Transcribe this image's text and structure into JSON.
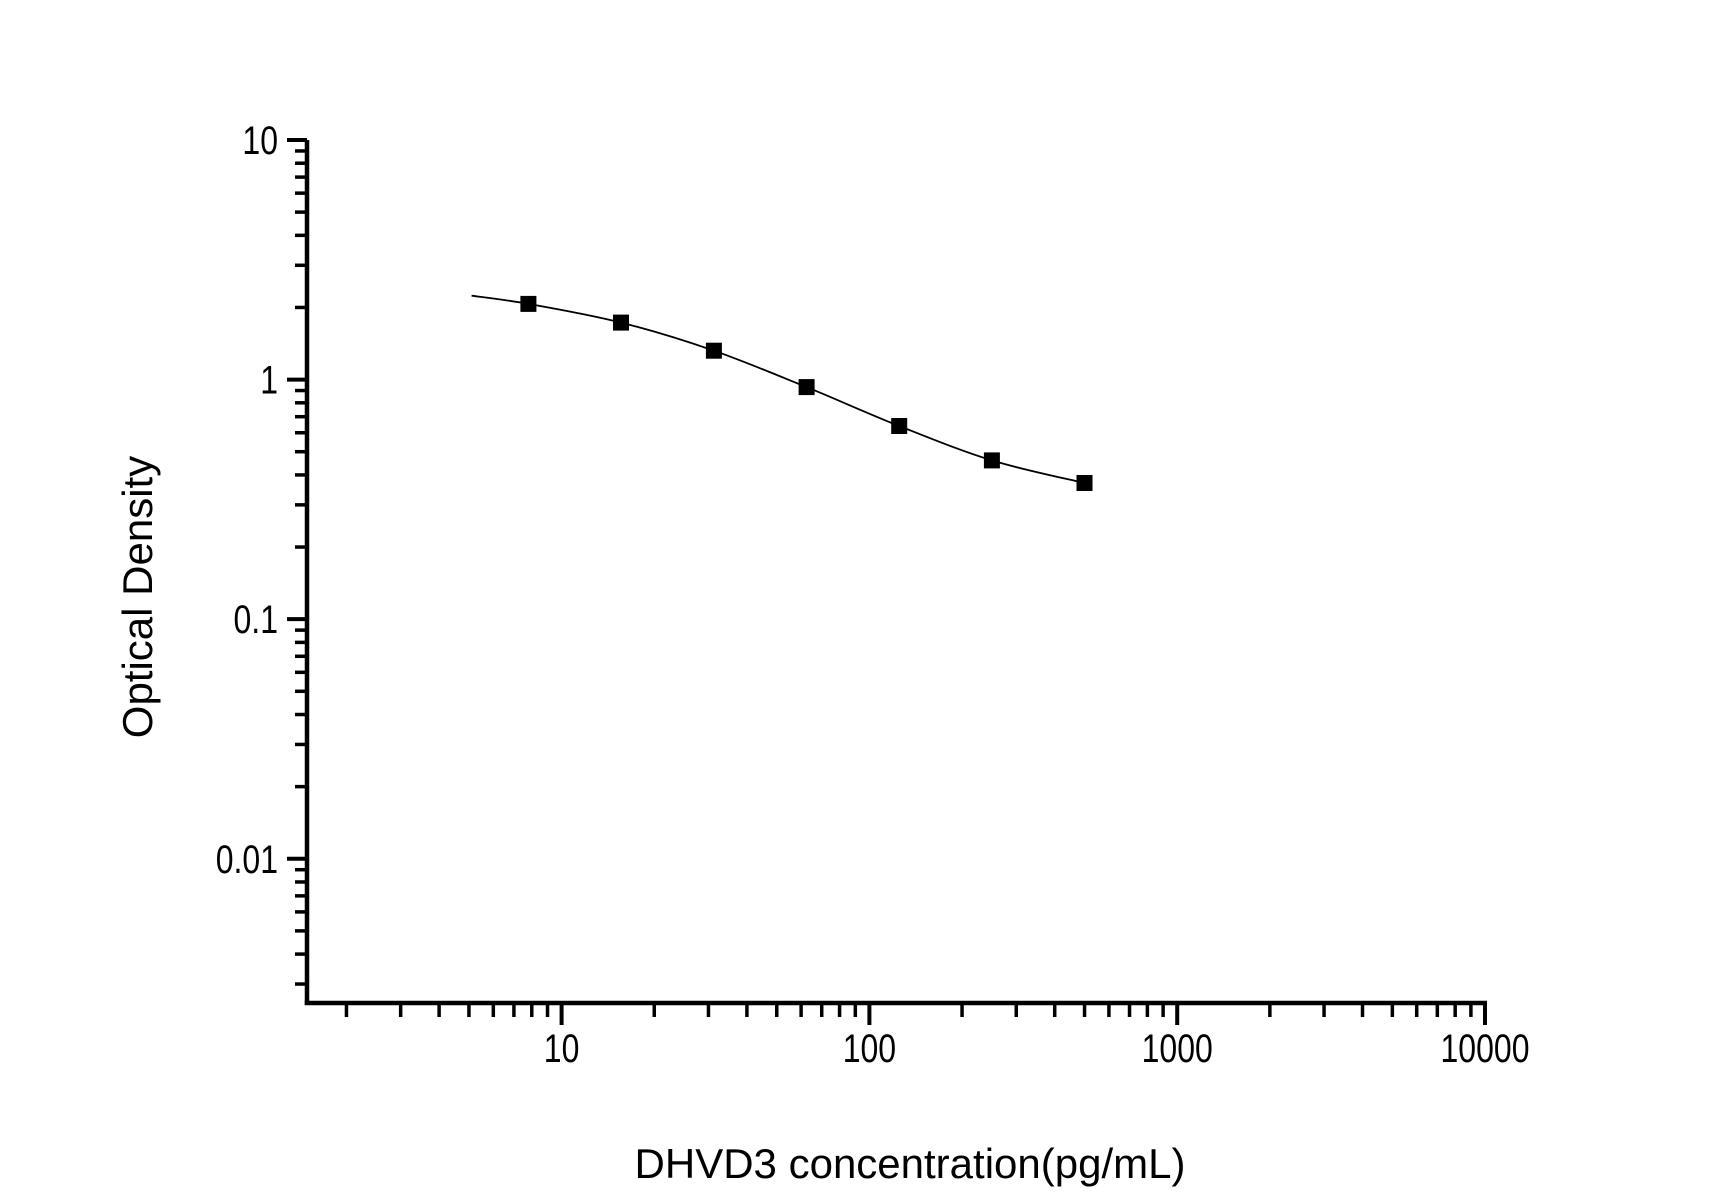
{
  "colors": {
    "foreground": "#000000",
    "background": "#ffffff"
  },
  "chart_data": {
    "type": "line",
    "title": "",
    "xlabel": "DHVD3 concentration(pg/mL)",
    "ylabel": "Optical Density",
    "x_scale": "log",
    "y_scale": "log",
    "xlim": [
      1.5,
      10000
    ],
    "ylim": [
      0.0025,
      10
    ],
    "grid": false,
    "legend": "none",
    "x_major_ticks": [
      10,
      100,
      1000,
      10000
    ],
    "x_major_tick_labels": [
      "10",
      "100",
      "1000",
      "10000"
    ],
    "y_major_ticks": [
      10,
      1,
      0.1,
      0.01
    ],
    "y_major_tick_labels": [
      "10",
      "1",
      "0.1",
      "0.01"
    ],
    "minor_tick_multipliers": [
      2,
      3,
      4,
      5,
      6,
      7,
      8,
      9
    ],
    "series": [
      {
        "marker": "filled-square",
        "marker_size": 16,
        "line_style": "solid",
        "color": "#000000",
        "x": [
          7.8,
          15.6,
          31.25,
          62.5,
          125,
          250,
          500
        ],
        "y": [
          2.07,
          1.73,
          1.32,
          0.93,
          0.64,
          0.46,
          0.37
        ],
        "curve_start": {
          "x": 5.1,
          "y": 2.24
        }
      }
    ]
  }
}
